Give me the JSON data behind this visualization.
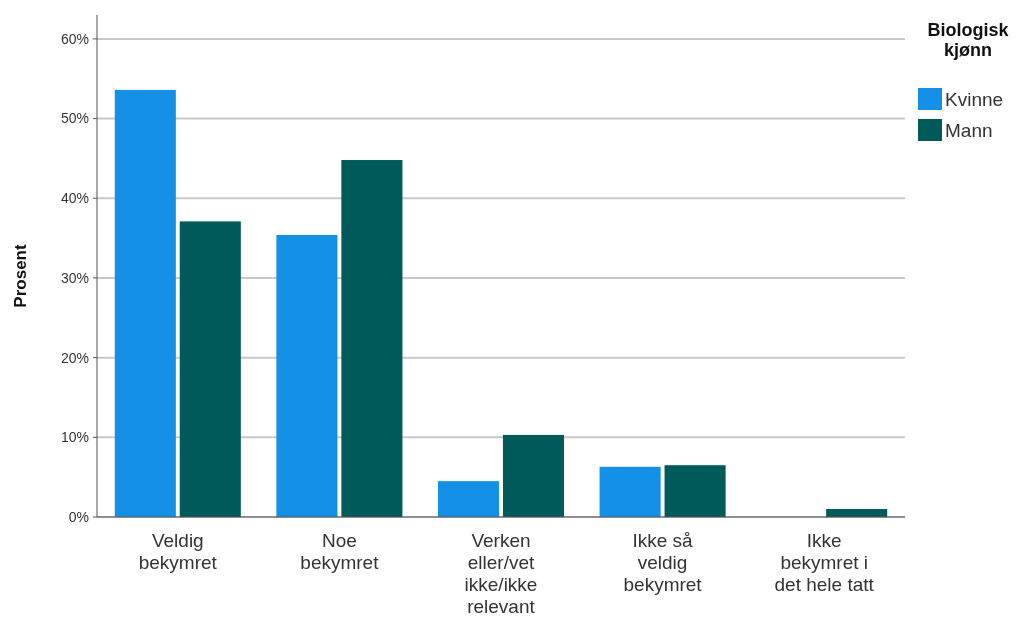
{
  "chart_data": {
    "type": "bar",
    "ylabel": "Prosent",
    "legend_title": "Biologisk\nkjønn",
    "categories": [
      "Veldig\nbekymret",
      "Noe\nbekymret",
      "Verken\neller/vet\nikke/ikke\nrelevant",
      "Ikke så\nveldig\nbekymret",
      "Ikke\nbekymret i\ndet hele tatt"
    ],
    "series": [
      {
        "name": "Kvinne",
        "color": "#1491e6",
        "values": [
          53.6,
          35.4,
          4.5,
          6.3,
          0
        ]
      },
      {
        "name": "Mann",
        "color": "#015a5a",
        "values": [
          37.1,
          44.8,
          10.3,
          6.5,
          1.0
        ]
      }
    ],
    "ylim": [
      0,
      63
    ],
    "yticks": [
      {
        "value": 0,
        "label": "0%"
      },
      {
        "value": 10,
        "label": "10%"
      },
      {
        "value": 20,
        "label": "20%"
      },
      {
        "value": 30,
        "label": "30%"
      },
      {
        "value": 40,
        "label": "40%"
      },
      {
        "value": 50,
        "label": "50%"
      },
      {
        "value": 60,
        "label": "60%"
      }
    ],
    "grid": "y",
    "legend": "top right"
  }
}
